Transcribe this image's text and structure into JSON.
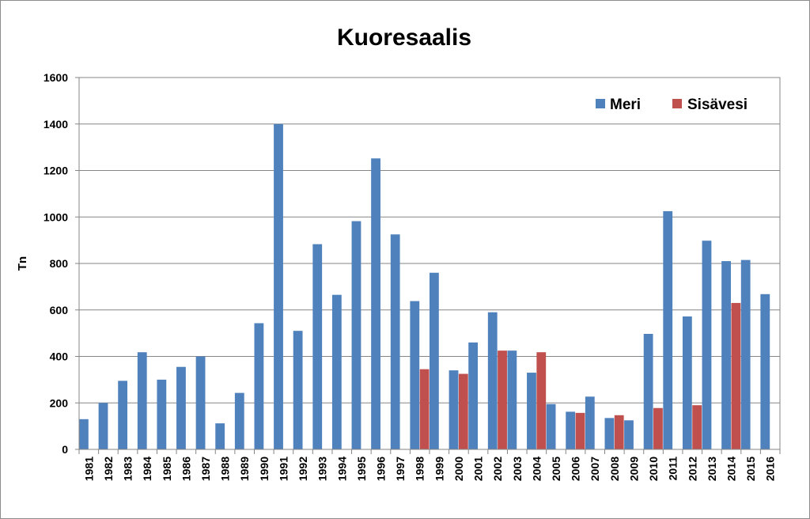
{
  "chart_data": {
    "type": "bar",
    "title": "Kuoresaalis",
    "xlabel": "",
    "ylabel": "Tn",
    "ylim": [
      0,
      1600
    ],
    "yticks": [
      0,
      200,
      400,
      600,
      800,
      1000,
      1200,
      1400,
      1600
    ],
    "grid": true,
    "legend_position": "top-right",
    "categories": [
      "1981",
      "1982",
      "1983",
      "1984",
      "1985",
      "1986",
      "1987",
      "1988",
      "1989",
      "1990",
      "1991",
      "1992",
      "1993",
      "1994",
      "1995",
      "1996",
      "1997",
      "1998",
      "1999",
      "2000",
      "2001",
      "2002",
      "2003",
      "2004",
      "2005",
      "2006",
      "2007",
      "2008",
      "2009",
      "2010",
      "2011",
      "2012",
      "2013",
      "2014",
      "2015",
      "2016"
    ],
    "series": [
      {
        "name": "Meri",
        "color": "#4f81bd",
        "values": [
          130,
          200,
          295,
          418,
          300,
          355,
          400,
          112,
          243,
          543,
          1400,
          510,
          883,
          665,
          982,
          1252,
          925,
          638,
          760,
          340,
          460,
          590,
          425,
          330,
          195,
          162,
          227,
          135,
          125,
          497,
          1025,
          572,
          898,
          810,
          815,
          668
        ]
      },
      {
        "name": "Sisävesi",
        "color": "#c0504d",
        "values": [
          null,
          null,
          null,
          null,
          null,
          null,
          null,
          null,
          null,
          null,
          null,
          null,
          null,
          null,
          null,
          null,
          null,
          345,
          null,
          325,
          null,
          425,
          null,
          418,
          null,
          157,
          null,
          147,
          null,
          178,
          null,
          190,
          null,
          630,
          null,
          null
        ]
      }
    ]
  }
}
